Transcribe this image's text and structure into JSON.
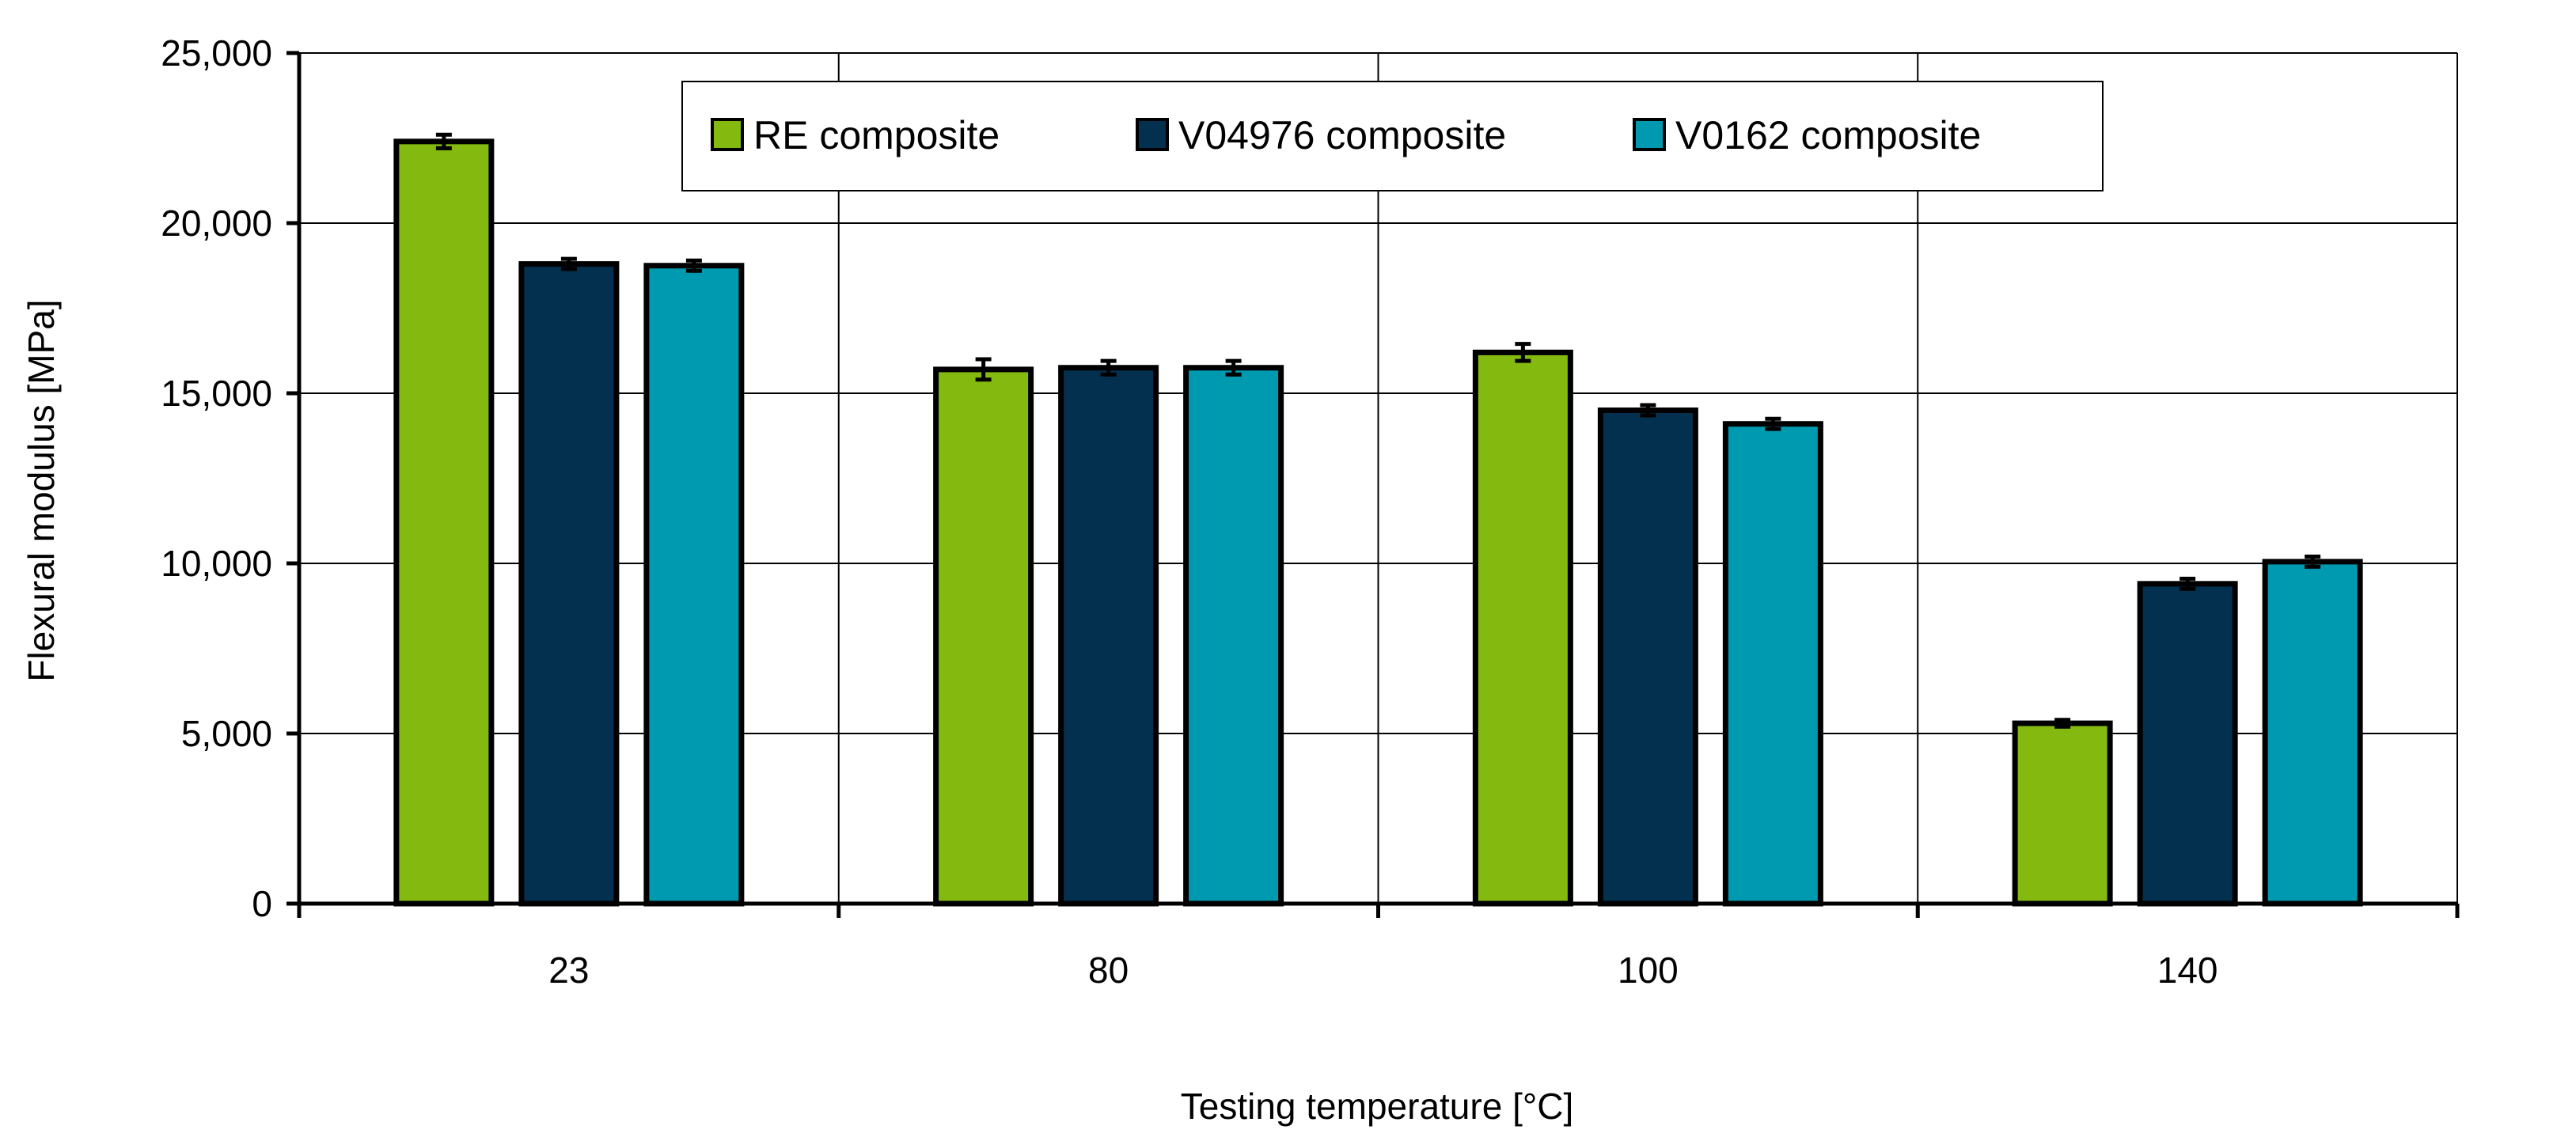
{
  "chart_data": {
    "type": "bar",
    "title": "",
    "xlabel": "Testing temperature   [°C]",
    "ylabel": "Flexural modulus   [MPa]",
    "ylim": [
      0,
      25000
    ],
    "yticks": [
      0,
      5000,
      10000,
      15000,
      20000,
      25000
    ],
    "ytick_labels": [
      "0",
      "5,000",
      "10,000",
      "15,000",
      "20,000",
      "25,000"
    ],
    "categories": [
      "23",
      "80",
      "100",
      "140"
    ],
    "grid": true,
    "legend_position": "top-center",
    "series": [
      {
        "name": "RE composite",
        "color": "#84BA0F",
        "values": [
          22400,
          15700,
          16200,
          5300
        ],
        "errors": [
          200,
          300,
          250,
          100
        ]
      },
      {
        "name": "V04976 composite",
        "color": "#03304E",
        "values": [
          18800,
          15750,
          14500,
          9400
        ],
        "errors": [
          150,
          200,
          150,
          150
        ]
      },
      {
        "name": "V0162 composite",
        "color": "#009AB0",
        "values": [
          18750,
          15750,
          14100,
          10050
        ],
        "errors": [
          150,
          200,
          150,
          150
        ]
      }
    ]
  }
}
